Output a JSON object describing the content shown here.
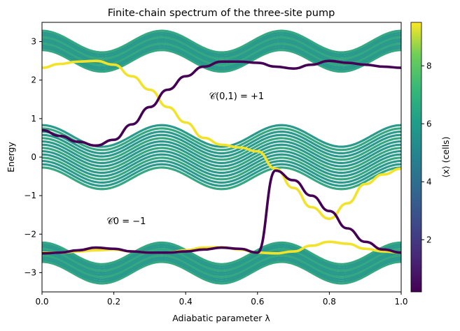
{
  "chart_data": {
    "type": "line",
    "title": "Finite-chain spectrum of the three-site pump",
    "xlabel": "Adiabatic parameter λ",
    "ylabel": "Energy",
    "xlim": [
      0,
      1
    ],
    "ylim": [
      -3.5,
      3.5
    ],
    "xticks": [
      0.0,
      0.2,
      0.4,
      0.6,
      0.8,
      1.0
    ],
    "xtick_labels": [
      "0.0",
      "0.2",
      "0.4",
      "0.6",
      "0.8",
      "1.0"
    ],
    "yticks": [
      -3,
      -2,
      -1,
      0,
      1,
      2,
      3
    ],
    "ytick_labels": [
      "−3",
      "−2",
      "−1",
      "0",
      "1",
      "2",
      "3"
    ],
    "grid": false,
    "bands": [
      {
        "name": "lower",
        "center_min": -3.0,
        "center_max": -2.5,
        "halfwidth": 0.28,
        "phase": 0.1667,
        "n_states": 10
      },
      {
        "name": "middle",
        "center_min": -0.55,
        "center_max": 0.55,
        "halfwidth": 0.28,
        "phase": 0.1667,
        "n_states": 14
      },
      {
        "name": "upper",
        "center_min": 2.5,
        "center_max": 3.0,
        "halfwidth": 0.28,
        "phase": 0.1667,
        "n_states": 10
      }
    ],
    "edge_states": [
      {
        "x": [
          0,
          0.05,
          0.1,
          0.15,
          0.2,
          0.25,
          0.3,
          0.35,
          0.4,
          0.45,
          0.5,
          0.55,
          0.6,
          0.65,
          0.7,
          0.75,
          0.8,
          0.85,
          0.9,
          0.95,
          1.0
        ],
        "y": [
          2.32,
          2.42,
          2.48,
          2.5,
          2.4,
          2.1,
          1.75,
          1.3,
          0.9,
          0.5,
          0.32,
          0.25,
          0.15,
          -0.3,
          -0.8,
          -1.3,
          -1.6,
          -1.2,
          -0.7,
          -0.45,
          -0.3
        ],
        "color_value": 9.3
      },
      {
        "x": [
          0,
          0.05,
          0.1,
          0.15,
          0.2,
          0.25,
          0.3,
          0.35,
          0.4,
          0.45,
          0.5,
          0.55,
          0.6,
          0.65,
          0.7,
          0.75,
          0.8,
          0.85,
          0.9,
          0.95,
          1.0
        ],
        "y": [
          -2.48,
          -2.48,
          -2.45,
          -2.42,
          -2.4,
          -2.45,
          -2.48,
          -2.48,
          -2.42,
          -2.35,
          -2.34,
          -2.4,
          -2.48,
          -2.5,
          -2.45,
          -2.3,
          -2.2,
          -2.25,
          -2.38,
          -2.45,
          -2.48
        ],
        "color_value": 9.3
      },
      {
        "x": [
          0,
          0.05,
          0.1,
          0.15,
          0.2,
          0.25,
          0.3,
          0.35,
          0.4,
          0.45,
          0.5,
          0.55,
          0.6,
          0.65,
          0.7,
          0.75,
          0.8,
          0.85,
          0.9,
          0.95,
          1.0
        ],
        "y": [
          0.7,
          0.55,
          0.4,
          0.3,
          0.45,
          0.85,
          1.3,
          1.75,
          2.1,
          2.35,
          2.48,
          2.48,
          2.45,
          2.35,
          2.3,
          2.4,
          2.5,
          2.45,
          2.4,
          2.35,
          2.32
        ],
        "color_value": 0.2
      },
      {
        "x": [
          0,
          0.05,
          0.1,
          0.15,
          0.2,
          0.25,
          0.3,
          0.35,
          0.4,
          0.45,
          0.5,
          0.55,
          0.6,
          0.65,
          0.7,
          0.75,
          0.8,
          0.85,
          0.9,
          0.95,
          1.0
        ],
        "y": [
          -2.5,
          -2.48,
          -2.42,
          -2.35,
          -2.38,
          -2.45,
          -2.48,
          -2.48,
          -2.45,
          -2.4,
          -2.35,
          -2.38,
          -2.48,
          -0.35,
          -0.6,
          -1.0,
          -1.4,
          -1.85,
          -2.2,
          -2.4,
          -2.48
        ],
        "color_value": 0.2
      }
    ],
    "annotations": [
      {
        "text": "𝒞(0,1) = +1",
        "x": 0.465,
        "y": 1.6
      },
      {
        "text": "𝒞0 = −1",
        "x": 0.18,
        "y": -1.65
      }
    ],
    "colorbar": {
      "label": "⟨x⟩ (cells)",
      "range": [
        0.2,
        9.5
      ],
      "ticks": [
        2,
        4,
        6,
        8
      ],
      "tick_labels": [
        "2",
        "4",
        "6",
        "8"
      ],
      "colormap": "viridis"
    },
    "colors": {
      "band": "#2a9a8c",
      "band_alt": "#35a882",
      "edge_high": "#f2e32a",
      "edge_low": "#440154"
    }
  }
}
